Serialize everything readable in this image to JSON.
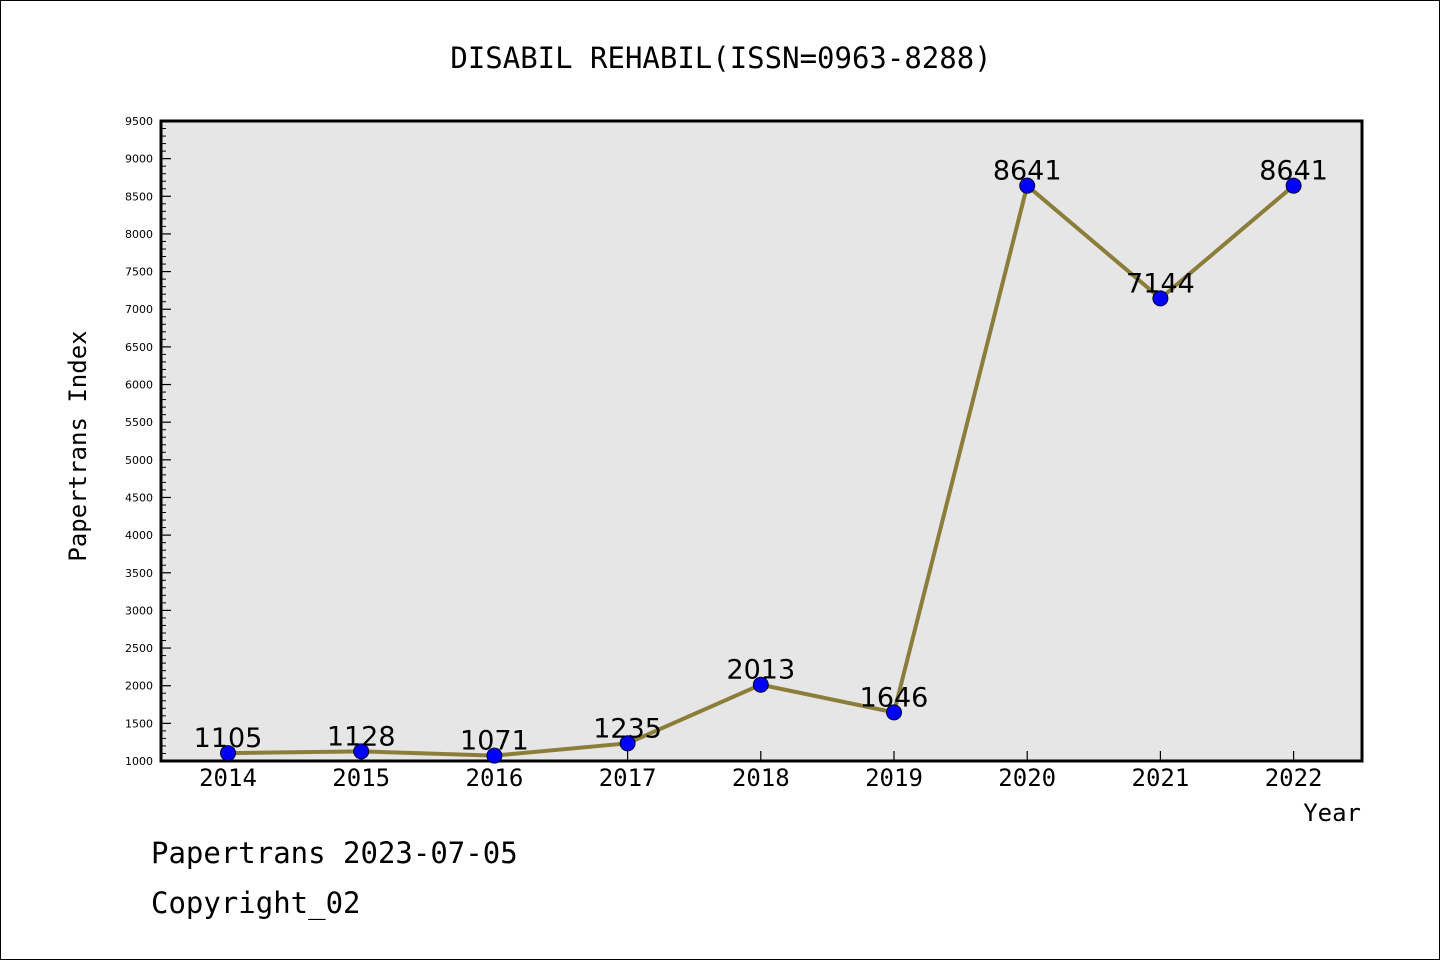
{
  "chart_data": {
    "type": "line",
    "title": "DISABIL REHABIL(ISSN=0963-8288)",
    "xlabel": "Year",
    "ylabel": "Papertrans Index",
    "categories": [
      "2014",
      "2015",
      "2016",
      "2017",
      "2018",
      "2019",
      "2020",
      "2021",
      "2022"
    ],
    "series": [
      {
        "values": [
          1105,
          1128,
          1071,
          1235,
          2013,
          1646,
          8641,
          7144,
          8641
        ],
        "data_labels": [
          "1105",
          "1128",
          "1071",
          "1235",
          "2013",
          "1646",
          "8641",
          "7144",
          "8641"
        ]
      }
    ],
    "ylim": [
      1000,
      9500
    ],
    "y_ticks": [
      "1000",
      "1500",
      "2000",
      "2500",
      "3000",
      "3500",
      "4000",
      "4500",
      "5000",
      "5500",
      "6000",
      "6500",
      "7000",
      "7500",
      "8000",
      "8500",
      "9000",
      "9500"
    ],
    "grid": false,
    "legend": "none",
    "colors": {
      "line": "#8b7d3a",
      "marker": "#0000ff",
      "plot_background": "#e6e6e6"
    }
  },
  "footer": {
    "date_line": "Papertrans 2023-07-05",
    "copyright_line": "Copyright_02"
  }
}
